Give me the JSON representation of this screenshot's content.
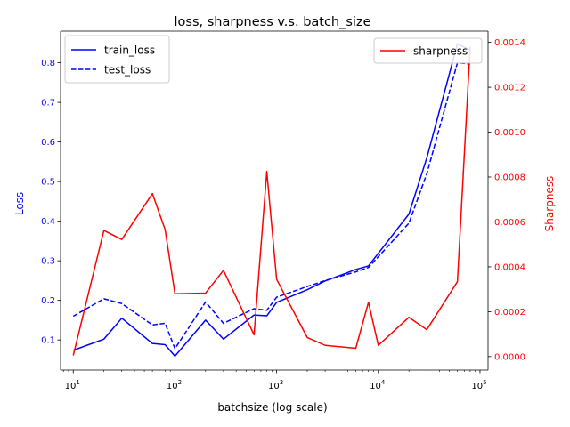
{
  "chart_data": {
    "type": "line",
    "title": "loss, sharpness v.s. batch_size",
    "xlabel": "batchsize (log scale)",
    "ylabel_left": "Loss",
    "ylabel_right": "Sharpness",
    "x_scale": "log",
    "xlim": [
      7.5,
      120000
    ],
    "ylim_left": [
      0.024,
      0.88
    ],
    "ylim_right": [
      -6e-05,
      0.00145
    ],
    "x_ticks": [
      {
        "value": 10,
        "base": "10",
        "exp": "1"
      },
      {
        "value": 100,
        "base": "10",
        "exp": "2"
      },
      {
        "value": 1000,
        "base": "10",
        "exp": "3"
      },
      {
        "value": 10000,
        "base": "10",
        "exp": "4"
      },
      {
        "value": 100000,
        "base": "10",
        "exp": "5"
      }
    ],
    "y_ticks_left": [
      "0.1",
      "0.2",
      "0.3",
      "0.4",
      "0.5",
      "0.6",
      "0.7",
      "0.8"
    ],
    "y_ticks_right": [
      "0.0000",
      "0.0002",
      "0.0004",
      "0.0006",
      "0.0008",
      "0.0010",
      "0.0012",
      "0.0014"
    ],
    "colors": {
      "loss": "#0000ff",
      "sharpness": "#ff0000",
      "axis": "#000000"
    },
    "series": [
      {
        "name": "train_loss",
        "axis": "left",
        "style": "solid",
        "color": "#0000ff",
        "x": [
          10,
          20,
          30,
          60,
          80,
          100,
          200,
          300,
          600,
          800,
          1000,
          2000,
          3000,
          6000,
          8000,
          20000,
          30000,
          60000,
          80000
        ],
        "values": [
          0.074,
          0.102,
          0.155,
          0.091,
          0.088,
          0.059,
          0.15,
          0.102,
          0.163,
          0.161,
          0.195,
          0.227,
          0.249,
          0.278,
          0.287,
          0.418,
          0.56,
          0.848,
          0.832
        ]
      },
      {
        "name": "test_loss",
        "axis": "left",
        "style": "dashed",
        "color": "#0000ff",
        "x": [
          10,
          20,
          30,
          60,
          80,
          100,
          200,
          300,
          600,
          800,
          1000,
          2000,
          3000,
          6000,
          8000,
          20000,
          30000,
          60000,
          80000
        ],
        "values": [
          0.16,
          0.204,
          0.192,
          0.138,
          0.142,
          0.078,
          0.196,
          0.142,
          0.179,
          0.175,
          0.208,
          0.235,
          0.25,
          0.272,
          0.283,
          0.395,
          0.52,
          0.8,
          0.797
        ]
      },
      {
        "name": "sharpness",
        "axis": "right",
        "style": "solid",
        "color": "#ff0000",
        "x": [
          10,
          20,
          30,
          60,
          80,
          100,
          200,
          300,
          600,
          800,
          1000,
          2000,
          3000,
          6000,
          8000,
          10000,
          20000,
          30000,
          60000,
          80000
        ],
        "values": [
          5e-06,
          0.000562,
          0.000522,
          0.000726,
          0.000566,
          0.00028,
          0.000283,
          0.000384,
          9.7e-05,
          0.000825,
          0.000344,
          8.5e-05,
          5e-05,
          3.7e-05,
          0.000242,
          5e-05,
          0.000175,
          0.00012,
          0.000334,
          0.00138
        ]
      }
    ],
    "legend_left": {
      "position": "upper-left",
      "entries": [
        "train_loss",
        "test_loss"
      ]
    },
    "legend_right": {
      "position": "upper-right",
      "entries": [
        "sharpness"
      ]
    }
  }
}
